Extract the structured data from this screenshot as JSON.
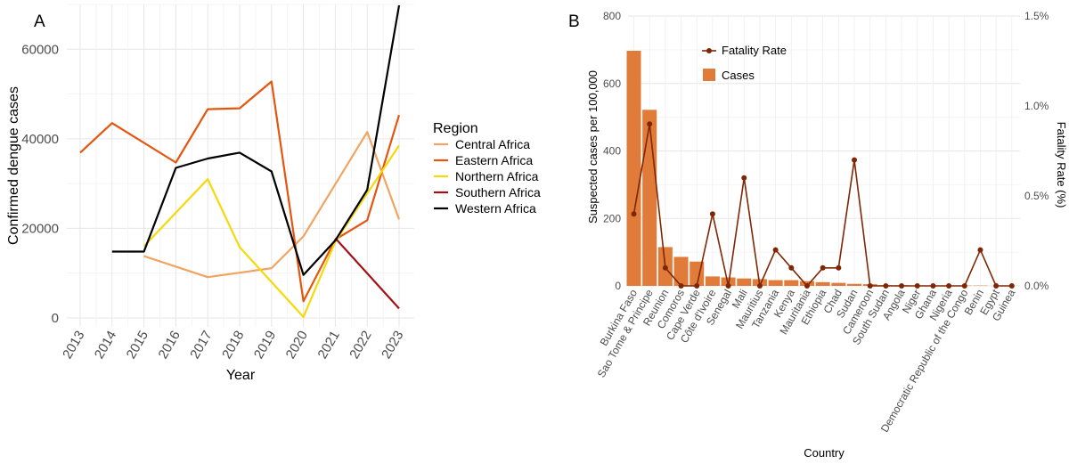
{
  "chart_data": [
    {
      "panel": "A",
      "type": "line",
      "xlabel": "Year",
      "ylabel": "Confirmed dengue cases",
      "x": [
        "2013",
        "2014",
        "2015",
        "2016",
        "2017",
        "2018",
        "2019",
        "2020",
        "2021",
        "2022",
        "2023"
      ],
      "y_ticks": [
        "0",
        "20000",
        "40000",
        "60000"
      ],
      "ylim": [
        -2000,
        70000
      ],
      "grid": true,
      "legend_title": "Region",
      "legend_position": "right",
      "series": [
        {
          "name": "Central Africa",
          "color": "#f0a460",
          "values": [
            null,
            null,
            13800,
            null,
            9100,
            10100,
            11100,
            18200,
            null,
            41500,
            22000
          ]
        },
        {
          "name": "Eastern Africa",
          "color": "#e6550d",
          "values": [
            36900,
            43500,
            null,
            34700,
            46600,
            46800,
            52800,
            3700,
            17500,
            21800,
            45300
          ]
        },
        {
          "name": "Northern Africa",
          "color": "#f5d90a",
          "values": [
            null,
            null,
            16000,
            null,
            31000,
            15800,
            null,
            200,
            17000,
            27800,
            38500
          ]
        },
        {
          "name": "Southern Africa",
          "color": "#a50f15",
          "values": [
            null,
            null,
            null,
            null,
            null,
            null,
            null,
            null,
            17800,
            null,
            2100
          ]
        },
        {
          "name": "Western Africa",
          "color": "#000000",
          "values": [
            null,
            14800,
            14800,
            33500,
            35600,
            36900,
            32700,
            9600,
            17300,
            28600,
            69800
          ]
        }
      ]
    },
    {
      "panel": "B",
      "type": "bar+line",
      "xlabel": "Country",
      "ylabel": "Suspected cases per 100,000",
      "y2label": "Fatality Rate (%)",
      "ylim": [
        0,
        800
      ],
      "y_ticks": [
        "0",
        "200",
        "400",
        "600",
        "800"
      ],
      "y2lim": [
        0,
        1.5
      ],
      "y2_ticks": [
        "0.0%",
        "0.5%",
        "1.0%",
        "1.5%"
      ],
      "grid": true,
      "legend_position": "top-left",
      "categories": [
        "Burkina Faso",
        "Sao Tome & Principe",
        "Reunion",
        "Comoros",
        "Cape Verde",
        "Côte d'Ivoire",
        "Senegal",
        "Mali",
        "Mauritius",
        "Tanzania",
        "Kenya",
        "Mauritania",
        "Ethiopia",
        "Chad",
        "Sudan",
        "Cameroon",
        "South Sudan",
        "Angola",
        "Niger",
        "Ghana",
        "Nigeria",
        "Democratic Republic of the Congo",
        "Benin",
        "Egypt",
        "Guinea"
      ],
      "series": [
        {
          "name": "Cases",
          "type": "bar",
          "color": "#e07b39",
          "values": [
            697,
            522,
            115,
            86,
            72,
            28,
            25,
            22,
            20,
            17,
            17,
            14,
            11,
            9,
            6,
            5,
            2,
            2,
            1,
            1,
            1,
            1,
            1,
            0,
            0
          ]
        },
        {
          "name": "Fatality Rate",
          "type": "line",
          "color": "#7f2704",
          "values": [
            0.4,
            0.9,
            0.1,
            0.0,
            0.0,
            0.4,
            0.0,
            0.6,
            0.0,
            0.2,
            0.1,
            0.0,
            0.1,
            0.1,
            0.7,
            0.0,
            0.0,
            0.0,
            0.0,
            0.0,
            0.0,
            0.0,
            0.2,
            0.0,
            0.0
          ]
        }
      ]
    }
  ],
  "panels": {
    "a_label": "A",
    "b_label": "B"
  }
}
